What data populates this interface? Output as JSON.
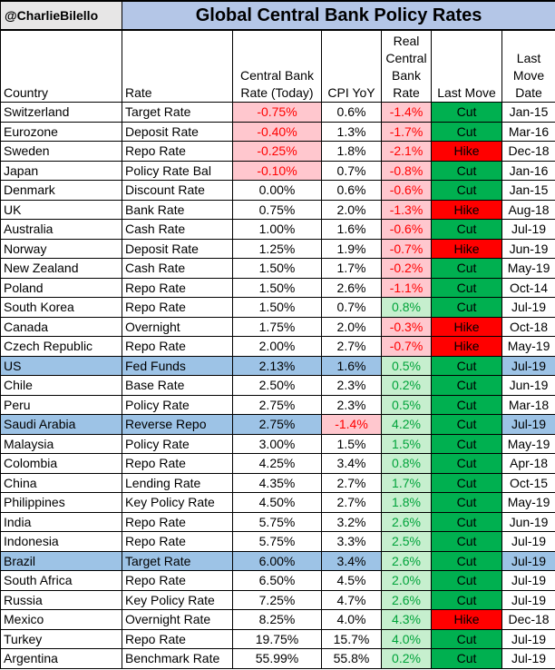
{
  "header": {
    "handle": "@CharlieBilello",
    "title": "Global Central Bank Policy Rates"
  },
  "columns": {
    "country": "Country",
    "rate": "Rate",
    "cb_rate": "Central Bank Rate (Today)",
    "cpi": "CPI YoY",
    "real": "Real Central Bank Rate",
    "last_move": "Last Move",
    "last_move_date": "Last Move Date"
  },
  "colors": {
    "header_title_bg": "#b4c6e7",
    "highlight_row": "#9dc3e6",
    "negative_fill": "#ffc7ce",
    "positive_fill": "#c6efce",
    "cut": "#00b050",
    "hike": "#ff0000"
  },
  "chart_data": {
    "type": "table",
    "title": "Global Central Bank Policy Rates",
    "columns": [
      "Country",
      "Rate",
      "Central Bank Rate (Today)",
      "CPI YoY",
      "Real Central Bank Rate",
      "Last Move",
      "Last Move Date"
    ],
    "rows": [
      {
        "country": "Switzerland",
        "rate": "Target Rate",
        "cb": "-0.75%",
        "cpi": "0.6%",
        "real": "-1.4%",
        "move": "Cut",
        "date": "Jan-15",
        "hl": false
      },
      {
        "country": "Eurozone",
        "rate": "Deposit Rate",
        "cb": "-0.40%",
        "cpi": "1.3%",
        "real": "-1.7%",
        "move": "Cut",
        "date": "Mar-16",
        "hl": false
      },
      {
        "country": "Sweden",
        "rate": "Repo Rate",
        "cb": "-0.25%",
        "cpi": "1.8%",
        "real": "-2.1%",
        "move": "Hike",
        "date": "Dec-18",
        "hl": false
      },
      {
        "country": "Japan",
        "rate": "Policy Rate Bal",
        "cb": "-0.10%",
        "cpi": "0.7%",
        "real": "-0.8%",
        "move": "Cut",
        "date": "Jan-16",
        "hl": false
      },
      {
        "country": "Denmark",
        "rate": "Discount Rate",
        "cb": "0.00%",
        "cpi": "0.6%",
        "real": "-0.6%",
        "move": "Cut",
        "date": "Jan-15",
        "hl": false
      },
      {
        "country": "UK",
        "rate": "Bank Rate",
        "cb": "0.75%",
        "cpi": "2.0%",
        "real": "-1.3%",
        "move": "Hike",
        "date": "Aug-18",
        "hl": false
      },
      {
        "country": "Australia",
        "rate": "Cash Rate",
        "cb": "1.00%",
        "cpi": "1.6%",
        "real": "-0.6%",
        "move": "Cut",
        "date": "Jul-19",
        "hl": false
      },
      {
        "country": "Norway",
        "rate": "Deposit Rate",
        "cb": "1.25%",
        "cpi": "1.9%",
        "real": "-0.7%",
        "move": "Hike",
        "date": "Jun-19",
        "hl": false
      },
      {
        "country": "New Zealand",
        "rate": "Cash Rate",
        "cb": "1.50%",
        "cpi": "1.7%",
        "real": "-0.2%",
        "move": "Cut",
        "date": "May-19",
        "hl": false
      },
      {
        "country": "Poland",
        "rate": "Repo Rate",
        "cb": "1.50%",
        "cpi": "2.6%",
        "real": "-1.1%",
        "move": "Cut",
        "date": "Oct-14",
        "hl": false
      },
      {
        "country": "South Korea",
        "rate": "Repo Rate",
        "cb": "1.50%",
        "cpi": "0.7%",
        "real": "0.8%",
        "move": "Cut",
        "date": "Jul-19",
        "hl": false
      },
      {
        "country": "Canada",
        "rate": "Overnight",
        "cb": "1.75%",
        "cpi": "2.0%",
        "real": "-0.3%",
        "move": "Hike",
        "date": "Oct-18",
        "hl": false
      },
      {
        "country": "Czech Republic",
        "rate": "Repo Rate",
        "cb": "2.00%",
        "cpi": "2.7%",
        "real": "-0.7%",
        "move": "Hike",
        "date": "May-19",
        "hl": false
      },
      {
        "country": "US",
        "rate": "Fed Funds",
        "cb": "2.13%",
        "cpi": "1.6%",
        "real": "0.5%",
        "move": "Cut",
        "date": "Jul-19",
        "hl": true
      },
      {
        "country": "Chile",
        "rate": "Base Rate",
        "cb": "2.50%",
        "cpi": "2.3%",
        "real": "0.2%",
        "move": "Cut",
        "date": "Jun-19",
        "hl": false
      },
      {
        "country": "Peru",
        "rate": "Policy Rate",
        "cb": "2.75%",
        "cpi": "2.3%",
        "real": "0.5%",
        "move": "Cut",
        "date": "Mar-18",
        "hl": false
      },
      {
        "country": "Saudi Arabia",
        "rate": "Reverse Repo",
        "cb": "2.75%",
        "cpi": "-1.4%",
        "real": "4.2%",
        "move": "Cut",
        "date": "Jul-19",
        "hl": true
      },
      {
        "country": "Malaysia",
        "rate": "Policy Rate",
        "cb": "3.00%",
        "cpi": "1.5%",
        "real": "1.5%",
        "move": "Cut",
        "date": "May-19",
        "hl": false
      },
      {
        "country": "Colombia",
        "rate": "Repo Rate",
        "cb": "4.25%",
        "cpi": "3.4%",
        "real": "0.8%",
        "move": "Cut",
        "date": "Apr-18",
        "hl": false
      },
      {
        "country": "China",
        "rate": "Lending Rate",
        "cb": "4.35%",
        "cpi": "2.7%",
        "real": "1.7%",
        "move": "Cut",
        "date": "Oct-15",
        "hl": false
      },
      {
        "country": "Philippines",
        "rate": "Key Policy Rate",
        "cb": "4.50%",
        "cpi": "2.7%",
        "real": "1.8%",
        "move": "Cut",
        "date": "May-19",
        "hl": false
      },
      {
        "country": "India",
        "rate": "Repo Rate",
        "cb": "5.75%",
        "cpi": "3.2%",
        "real": "2.6%",
        "move": "Cut",
        "date": "Jun-19",
        "hl": false
      },
      {
        "country": "Indonesia",
        "rate": "Repo Rate",
        "cb": "5.75%",
        "cpi": "3.3%",
        "real": "2.5%",
        "move": "Cut",
        "date": "Jul-19",
        "hl": false
      },
      {
        "country": "Brazil",
        "rate": "Target Rate",
        "cb": "6.00%",
        "cpi": "3.4%",
        "real": "2.6%",
        "move": "Cut",
        "date": "Jul-19",
        "hl": true
      },
      {
        "country": "South Africa",
        "rate": "Repo Rate",
        "cb": "6.50%",
        "cpi": "4.5%",
        "real": "2.0%",
        "move": "Cut",
        "date": "Jul-19",
        "hl": false
      },
      {
        "country": "Russia",
        "rate": "Key Policy Rate",
        "cb": "7.25%",
        "cpi": "4.7%",
        "real": "2.6%",
        "move": "Cut",
        "date": "Jul-19",
        "hl": false
      },
      {
        "country": "Mexico",
        "rate": "Overnight Rate",
        "cb": "8.25%",
        "cpi": "4.0%",
        "real": "4.3%",
        "move": "Hike",
        "date": "Dec-18",
        "hl": false
      },
      {
        "country": "Turkey",
        "rate": "Repo Rate",
        "cb": "19.75%",
        "cpi": "15.7%",
        "real": "4.0%",
        "move": "Cut",
        "date": "Jul-19",
        "hl": false
      },
      {
        "country": "Argentina",
        "rate": "Benchmark Rate",
        "cb": "55.99%",
        "cpi": "55.8%",
        "real": "0.2%",
        "move": "Cut",
        "date": "Jul-19",
        "hl": false
      }
    ]
  }
}
